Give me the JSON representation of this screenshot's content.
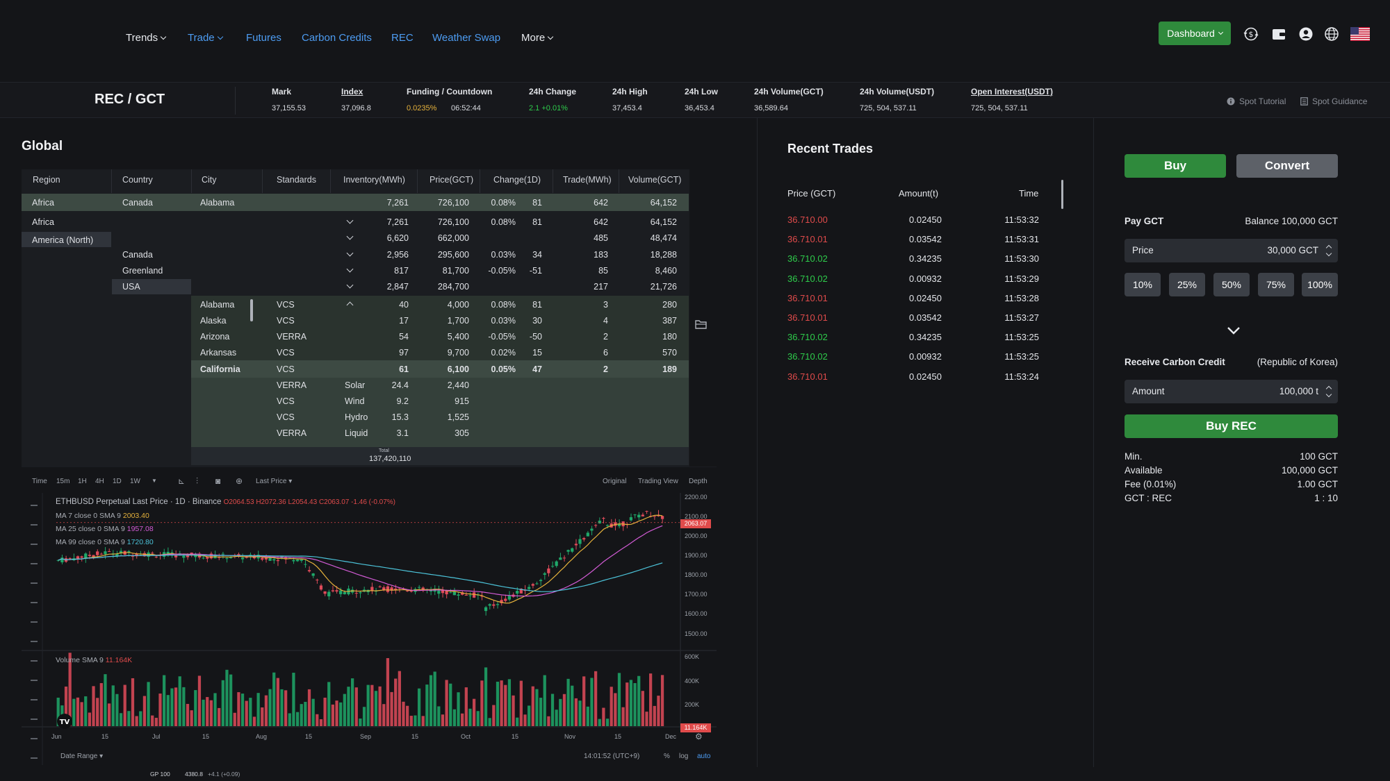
{
  "nav": {
    "items": [
      {
        "label": "Trends",
        "dropdown": true,
        "color": "#e8eaee"
      },
      {
        "label": "Trade",
        "dropdown": true,
        "color": "#4d9cf2"
      },
      {
        "label": "Futures",
        "dropdown": false,
        "color": "#4d9cf2"
      },
      {
        "label": "Carbon Credits",
        "dropdown": false,
        "color": "#4d9cf2"
      },
      {
        "label": "REC",
        "dropdown": false,
        "color": "#4d9cf2"
      },
      {
        "label": "Weather Swap",
        "dropdown": false,
        "color": "#4d9cf2"
      },
      {
        "label": "More",
        "dropdown": true,
        "color": "#e8eaee"
      }
    ],
    "dashboard_label": "Dashboard",
    "icons": [
      "dollar-exchange-icon",
      "wallet-icon",
      "user-icon",
      "globe-icon",
      "us-flag-icon"
    ]
  },
  "ticker": {
    "pair": "REC / GCT",
    "mark_label": "Mark",
    "mark_value": "37,155.53",
    "index_label": "Index",
    "index_value": "37,096.8",
    "funding_label": "Funding / Countdown",
    "funding_rate": "0.0235%",
    "countdown": "06:52:44",
    "change_label": "24h Change",
    "change_value": "2.1 +0.01%",
    "high_label": "24h High",
    "high_value": "37,453.4",
    "low_label": "24h Low",
    "low_value": "36,453.4",
    "vol_gct_label": "24h Volume(GCT)",
    "vol_gct_value": "36,589.64",
    "vol_usdt_label": "24h Volume(USDT)",
    "vol_usdt_value": "725, 504, 537.11",
    "oi_label": "Open Interest(USDT)",
    "oi_value": "725, 504, 537.11",
    "spot_tutorial": "Spot Tutorial",
    "spot_guidance": "Spot Guidance"
  },
  "global": {
    "title": "Global",
    "headers": [
      "Region",
      "Country",
      "City",
      "Standards",
      "Inventory(MWh)",
      "Price(GCT)",
      "Change(1D)",
      "Trade(MWh)",
      "Volume(GCT)"
    ],
    "selected_row": {
      "region": "Africa",
      "country": "Canada",
      "city": "Alabama",
      "inventory": "7,261",
      "price": "726,100",
      "change": "0.08%",
      "change2": "81",
      "trade": "642",
      "volume": "64,152"
    },
    "regions": [
      "Africa",
      "America (North)"
    ],
    "countries": [
      "Canada",
      "Greenland",
      "USA"
    ],
    "summary_rows": [
      {
        "inventory": "7,261",
        "price": "726,100",
        "change": "0.08%",
        "change2": "81",
        "trade": "642",
        "volume": "64,152"
      },
      {
        "inventory": "6,620",
        "price": "662,000",
        "change": "",
        "change2": "",
        "trade": "485",
        "volume": "48,474"
      },
      {
        "inventory": "2,956",
        "price": "295,600",
        "change": "0.03%",
        "change2": "34",
        "trade": "183",
        "volume": "18,288"
      },
      {
        "inventory": "817",
        "price": "81,700",
        "change": "-0.05%",
        "change2": "-51",
        "trade": "85",
        "volume": "8,460"
      },
      {
        "inventory": "2,847",
        "price": "284,700",
        "change": "",
        "change2": "",
        "trade": "217",
        "volume": "21,726"
      }
    ],
    "state_rows": [
      {
        "city": "Alabama",
        "standard": "VCS",
        "inventory": "40",
        "price": "4,000",
        "change": "0.08%",
        "change2": "81",
        "trade": "3",
        "volume": "280"
      },
      {
        "city": "Alaska",
        "standard": "VCS",
        "inventory": "17",
        "price": "1,700",
        "change": "0.03%",
        "change2": "30",
        "trade": "4",
        "volume": "387"
      },
      {
        "city": "Arizona",
        "standard": "VERRA",
        "inventory": "54",
        "price": "5,400",
        "change": "-0.05%",
        "change2": "-50",
        "trade": "2",
        "volume": "180"
      },
      {
        "city": "Arkansas",
        "standard": "VCS",
        "inventory": "97",
        "price": "9,700",
        "change": "0.02%",
        "change2": "15",
        "trade": "6",
        "volume": "570"
      },
      {
        "city": "California",
        "standard": "VCS",
        "inventory": "61",
        "price": "6,100",
        "change": "0.05%",
        "change2": "47",
        "trade": "2",
        "volume": "189"
      }
    ],
    "california_breakdown": [
      {
        "standard": "VERRA",
        "type": "Solar",
        "inventory": "24.4",
        "price": "2,440"
      },
      {
        "standard": "VCS",
        "type": "Wind",
        "inventory": "9.2",
        "price": "915"
      },
      {
        "standard": "VCS",
        "type": "Hydro",
        "inventory": "15.3",
        "price": "1,525"
      },
      {
        "standard": "VERRA",
        "type": "Liquid",
        "inventory": "3.1",
        "price": "305"
      }
    ],
    "total_label": "Total",
    "total_value": "137,420,110"
  },
  "chart": {
    "toolbar": [
      "Time",
      "15m",
      "1H",
      "4H",
      "1D",
      "1W"
    ],
    "active_interval": "1D",
    "last_price": "Last Price",
    "views": [
      "Original",
      "Trading View",
      "Depth"
    ],
    "active_view": "Trading View",
    "legend_title": "ETHBUSD Perpetual Last Price · 1D · Binance",
    "ohlc": "O2064.53 H2072.36 L2054.43 C2063.07 -1.46 (-0.07%)",
    "ma7": "MA 7 close 0 SMA 9",
    "ma7_val": "2003.40",
    "ma25": "MA 25 close 0 SMA 9",
    "ma25_val": "1957.08",
    "ma99": "MA 99 close 0 SMA 9",
    "ma99_val": "1720.80",
    "price_tag": "2063.07",
    "y_ticks": [
      "2200.00",
      "2100.00",
      "2000.00",
      "1900.00",
      "1800.00",
      "1700.00",
      "1600.00",
      "1500.00"
    ],
    "volume_label": "Volume SMA 9",
    "volume_val": "11.164K",
    "vol_ticks": [
      "600K",
      "400K",
      "200K"
    ],
    "vol_tag": "11.164K",
    "x_ticks": [
      "Jun",
      "15",
      "Jul",
      "15",
      "Aug",
      "15",
      "Sep",
      "15",
      "Oct",
      "15",
      "Nov",
      "15",
      "Dec"
    ],
    "date_range": "Date Range",
    "clock": "14:01:52 (UTC+9)",
    "scale_opts": [
      "%",
      "log",
      "auto"
    ],
    "footer": "GP 100",
    "footer_val": "4380.8",
    "footer_chg": "+4.1 (+0.09)",
    "colors": {
      "up": "#1fa86a",
      "down": "#e04b5a"
    }
  },
  "recent_trades": {
    "title": "Recent Trades",
    "headers": [
      "Price (GCT)",
      "Amount(t)",
      "Time"
    ],
    "rows": [
      {
        "price": "36.710.00",
        "amount": "0.02450",
        "time": "11:53:32",
        "side": "sell"
      },
      {
        "price": "36.710.01",
        "amount": "0.03542",
        "time": "11:53:31",
        "side": "sell"
      },
      {
        "price": "36.710.02",
        "amount": "0.34235",
        "time": "11:53:30",
        "side": "buy"
      },
      {
        "price": "36.710.02",
        "amount": "0.00932",
        "time": "11:53:29",
        "side": "buy"
      },
      {
        "price": "36.710.01",
        "amount": "0.02450",
        "time": "11:53:28",
        "side": "sell"
      },
      {
        "price": "36.710.01",
        "amount": "0.03542",
        "time": "11:53:27",
        "side": "sell"
      },
      {
        "price": "36.710.02",
        "amount": "0.34235",
        "time": "11:53:25",
        "side": "buy"
      },
      {
        "price": "36.710.02",
        "amount": "0.00932",
        "time": "11:53:25",
        "side": "buy"
      },
      {
        "price": "36.710.01",
        "amount": "0.02450",
        "time": "11:53:24",
        "side": "sell"
      }
    ]
  },
  "order": {
    "buy_label": "Buy",
    "convert_label": "Convert",
    "pay_label": "Pay GCT",
    "balance": "Balance 100,000 GCT",
    "price_label": "Price",
    "price_value": "30,000 GCT",
    "percents": [
      "10%",
      "25%",
      "50%",
      "75%",
      "100%"
    ],
    "receive_label": "Receive Carbon Credit",
    "receive_region": "(Republic of Korea)",
    "amount_label": "Amount",
    "amount_value": "100,000 t",
    "submit_label": "Buy REC",
    "info": [
      {
        "label": "Min.",
        "value": "100 GCT"
      },
      {
        "label": "Available",
        "value": "100,000 GCT"
      },
      {
        "label": "Fee (0.01%)",
        "value": "1.00 GCT"
      },
      {
        "label": "GCT : REC",
        "value": "1 : 10"
      }
    ]
  }
}
